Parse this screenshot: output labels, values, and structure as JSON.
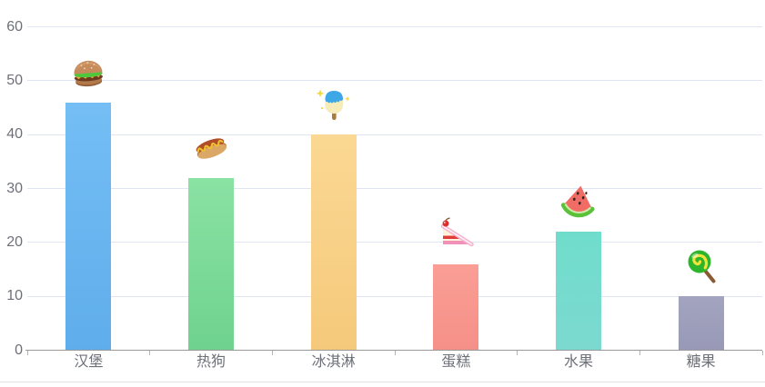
{
  "chart_data": {
    "type": "bar",
    "title": "",
    "categories": [
      "汉堡",
      "热狗",
      "冰淇淋",
      "蛋糕",
      "水果",
      "糖果"
    ],
    "category_ids": [
      "hamburger",
      "hot-dog",
      "ice-cream",
      "cake",
      "fruit",
      "candy"
    ],
    "values": [
      46,
      32,
      40,
      16,
      22,
      10
    ],
    "icons": [
      "hamburger-icon",
      "hot-dog-icon",
      "popsicle-icon",
      "cake-slice-icon",
      "watermelon-icon",
      "lollipop-icon"
    ],
    "bar_colors_top": [
      "#74bef5",
      "#8ae2a3",
      "#fbd893",
      "#fa9e95",
      "#70ddcc",
      "#a3a4bf"
    ],
    "bar_colors_bottom": [
      "#5fadeb",
      "#6fd28e",
      "#f5c97b",
      "#f59088",
      "#7cd9d0",
      "#9899b7"
    ],
    "xlabel": "",
    "ylabel": "",
    "ylim": [
      0,
      60
    ],
    "yticks": [
      0,
      10,
      20,
      30,
      40,
      50,
      60
    ],
    "grid": true,
    "legend": false,
    "colors": {
      "axis_label": "#6e7079",
      "grid_line": "#e0e6f1",
      "axis_line": "#999999",
      "tick": "#b3b3b3",
      "page_border": "#e3e3e3",
      "background": "#ffffff"
    }
  }
}
